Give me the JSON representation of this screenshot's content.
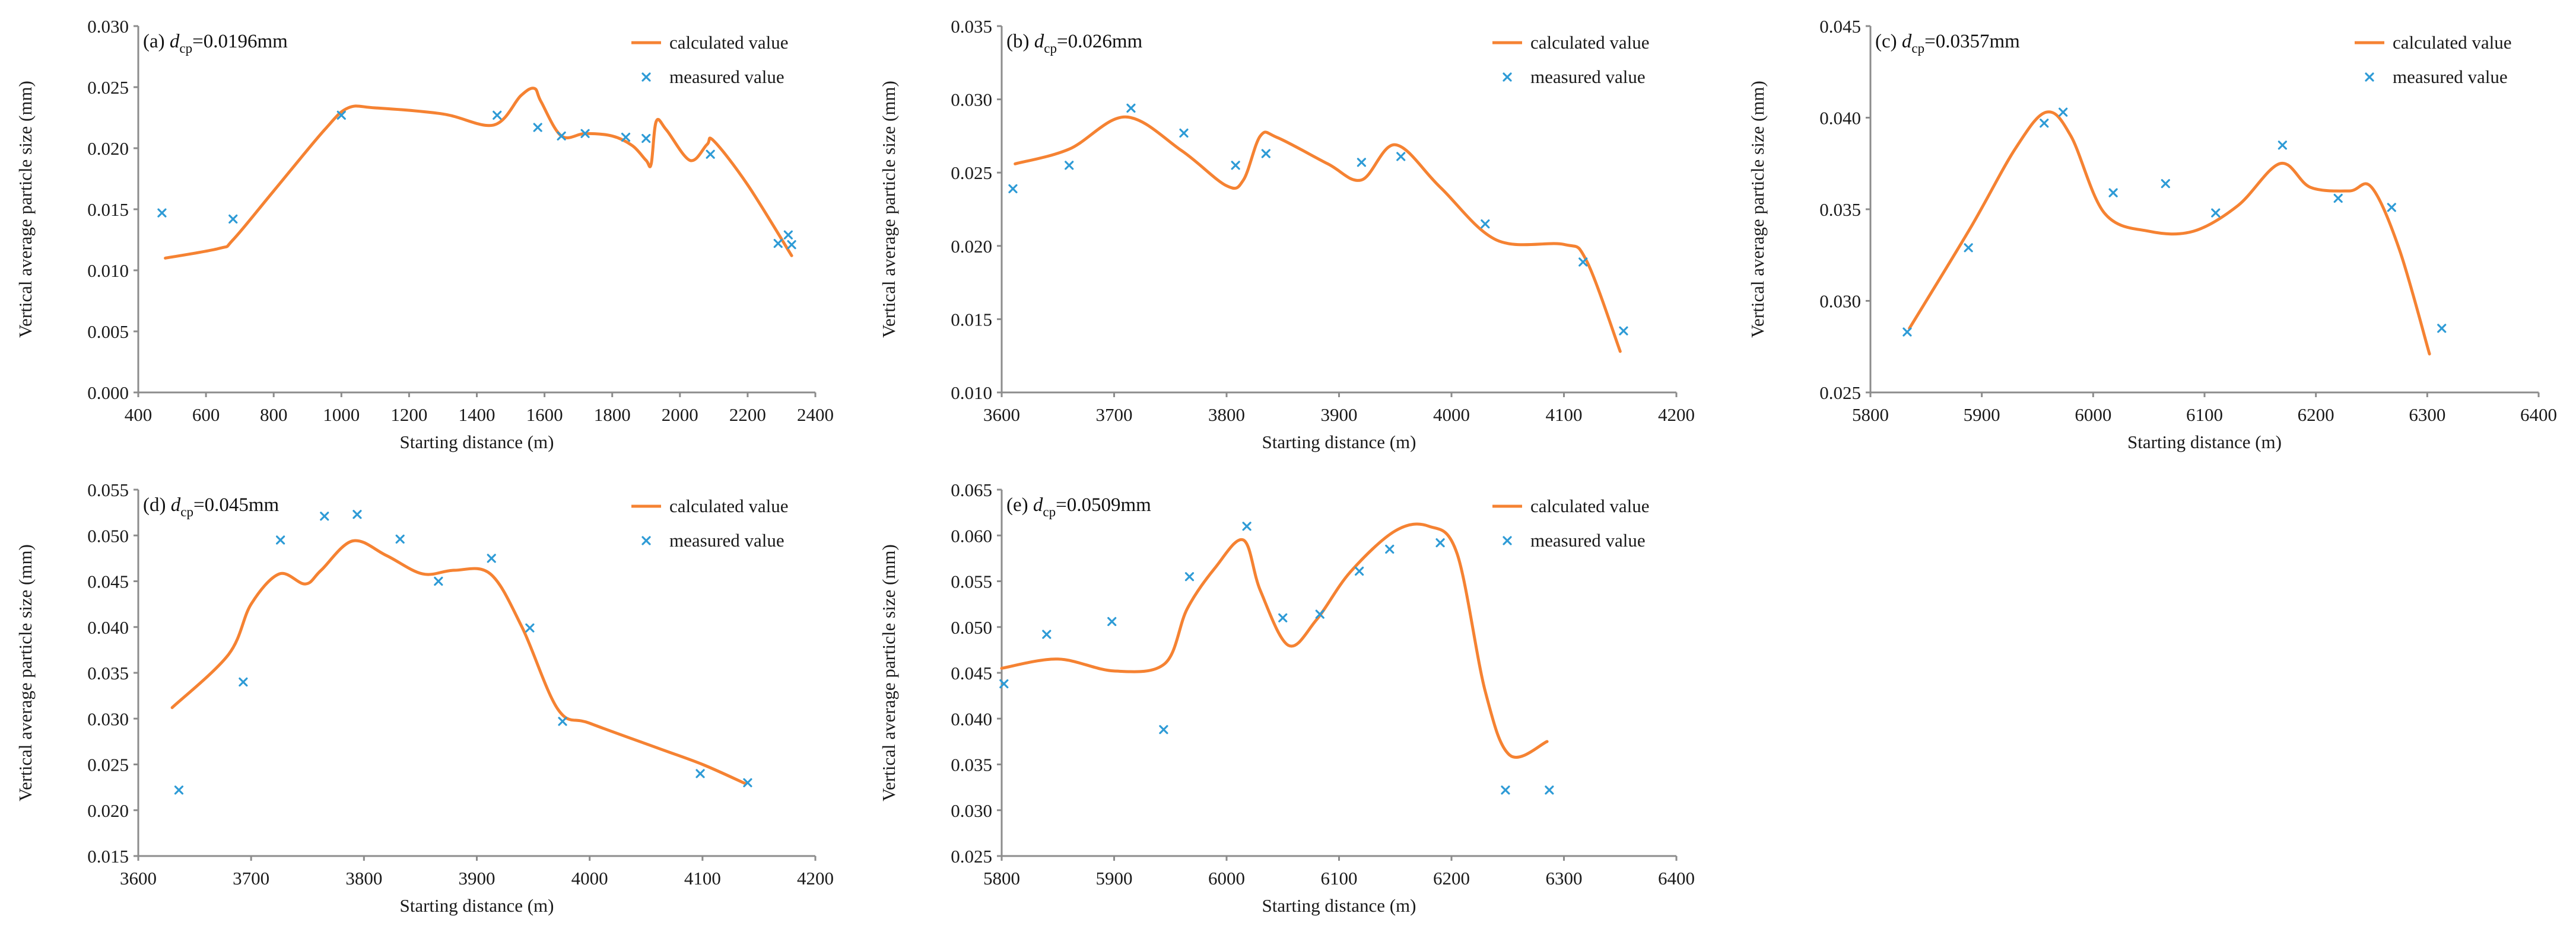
{
  "colors": {
    "calculated": "#f58232",
    "measured": "#2e9bd6",
    "axis": "#8c8c8c",
    "text": "#1a1a1a"
  },
  "chart_data": [
    {
      "id": "a",
      "type": "line",
      "title_prefix": "(a) ",
      "title_symbol": "d",
      "title_sub": "cp",
      "title_value": "=0.0196mm",
      "xlabel": "Starting distance (m)",
      "ylabel": "Vertical average particle size (mm)",
      "xlim": [
        400,
        2400
      ],
      "ylim": [
        0,
        0.03
      ],
      "xticks": [
        400,
        600,
        800,
        1000,
        1200,
        1400,
        1600,
        1800,
        2000,
        2200,
        2400
      ],
      "xtick_labels": [
        "400",
        "600",
        "800",
        "1000",
        "1200",
        "1400",
        "1600",
        "1800",
        "2000",
        "2200",
        "2400"
      ],
      "yticks": [
        0,
        0.005,
        0.01,
        0.015,
        0.02,
        0.025,
        0.03
      ],
      "ytick_labels": [
        "0.000",
        "0.005",
        "0.010",
        "0.015",
        "0.020",
        "0.025",
        "0.030"
      ],
      "legend": [
        "calculated value",
        "measured value"
      ],
      "series": [
        {
          "name": "calculated value",
          "style": "line",
          "x": [
            480,
            640,
            680,
            800,
            950,
            1020,
            1100,
            1300,
            1450,
            1530,
            1570,
            1590,
            1650,
            1720,
            1800,
            1860,
            1900,
            1915,
            1930,
            1960,
            2030,
            2080,
            2100,
            2200,
            2330
          ],
          "y": [
            0.011,
            0.0118,
            0.0125,
            0.0165,
            0.0215,
            0.0233,
            0.0233,
            0.0228,
            0.0219,
            0.0243,
            0.0249,
            0.0238,
            0.021,
            0.0212,
            0.021,
            0.0202,
            0.019,
            0.0187,
            0.0222,
            0.0215,
            0.019,
            0.0203,
            0.0206,
            0.017,
            0.0112
          ]
        },
        {
          "name": "measured value",
          "style": "marker",
          "x": [
            470,
            680,
            1000,
            1460,
            1580,
            1650,
            1720,
            1840,
            1900,
            2090,
            2290,
            2320,
            2330
          ],
          "y": [
            0.0147,
            0.0142,
            0.0227,
            0.0227,
            0.0217,
            0.021,
            0.0212,
            0.0209,
            0.0208,
            0.0195,
            0.0122,
            0.0129,
            0.0121
          ]
        }
      ]
    },
    {
      "id": "b",
      "type": "line",
      "title_prefix": "(b) ",
      "title_symbol": "d",
      "title_sub": "cp",
      "title_value": "=0.026mm",
      "xlabel": "Starting distance (m)",
      "ylabel": "Vertical average particle size (mm)",
      "xlim": [
        3600,
        4200
      ],
      "ylim": [
        0.01,
        0.035
      ],
      "xticks": [
        3600,
        3700,
        3800,
        3900,
        4000,
        4100,
        4200
      ],
      "xtick_labels": [
        "3600",
        "3700",
        "3800",
        "3900",
        "4000",
        "4100",
        "4200"
      ],
      "yticks": [
        0.01,
        0.015,
        0.02,
        0.025,
        0.03,
        0.035
      ],
      "ytick_labels": [
        "0.010",
        "0.015",
        "0.020",
        "0.025",
        "0.030",
        "0.035"
      ],
      "legend": [
        "calculated value",
        "measured value"
      ],
      "series": [
        {
          "name": "calculated value",
          "style": "line",
          "x": [
            3612,
            3660,
            3710,
            3760,
            3800,
            3815,
            3830,
            3845,
            3890,
            3920,
            3950,
            3990,
            4040,
            4100,
            4120,
            4150
          ],
          "y": [
            0.0256,
            0.0266,
            0.0288,
            0.0265,
            0.0241,
            0.0245,
            0.0275,
            0.0274,
            0.0256,
            0.0245,
            0.0269,
            0.024,
            0.0204,
            0.0201,
            0.019,
            0.0128
          ]
        },
        {
          "name": "measured value",
          "style": "marker",
          "x": [
            3610,
            3660,
            3715,
            3762,
            3808,
            3835,
            3920,
            3955,
            4030,
            4117,
            4153
          ],
          "y": [
            0.0239,
            0.0255,
            0.0294,
            0.0277,
            0.0255,
            0.0263,
            0.0257,
            0.0261,
            0.0215,
            0.0189,
            0.0142
          ]
        }
      ]
    },
    {
      "id": "c",
      "type": "line",
      "title_prefix": "(c) ",
      "title_symbol": "d",
      "title_sub": "cp",
      "title_value": "=0.0357mm",
      "xlabel": "Starting distance (m)",
      "ylabel": "Vertical average particle size (mm)",
      "xlim": [
        5800,
        6400
      ],
      "ylim": [
        0.025,
        0.045
      ],
      "xticks": [
        5800,
        5900,
        6000,
        6100,
        6200,
        6300,
        6400
      ],
      "xtick_labels": [
        "5800",
        "5900",
        "6000",
        "6100",
        "6200",
        "6300",
        "6400"
      ],
      "yticks": [
        0.025,
        0.03,
        0.035,
        0.04,
        0.045
      ],
      "ytick_labels": [
        "0.025",
        "0.030",
        "0.035",
        "0.040",
        "0.045"
      ],
      "legend": [
        "calculated value",
        "measured value"
      ],
      "series": [
        {
          "name": "calculated value",
          "style": "line",
          "x": [
            5835,
            5890,
            5930,
            5958,
            5980,
            6010,
            6050,
            6090,
            6130,
            6168,
            6195,
            6230,
            6250,
            6275,
            6302
          ],
          "y": [
            0.0285,
            0.034,
            0.0383,
            0.0403,
            0.039,
            0.0348,
            0.0338,
            0.0338,
            0.0352,
            0.0375,
            0.0362,
            0.036,
            0.0362,
            0.0328,
            0.0271
          ]
        },
        {
          "name": "measured value",
          "style": "marker",
          "x": [
            5833,
            5888,
            5956,
            5973,
            6018,
            6065,
            6110,
            6170,
            6220,
            6268,
            6313
          ],
          "y": [
            0.0283,
            0.0329,
            0.0397,
            0.0403,
            0.0359,
            0.0364,
            0.0348,
            0.0385,
            0.0356,
            0.0351,
            0.0285
          ]
        }
      ]
    },
    {
      "id": "d",
      "type": "line",
      "title_prefix": "(d) ",
      "title_symbol": "d",
      "title_sub": "cp",
      "title_value": "=0.045mm",
      "xlabel": "Starting distance (m)",
      "ylabel": "Vertical average particle size (mm)",
      "xlim": [
        3600,
        4200
      ],
      "ylim": [
        0.015,
        0.055
      ],
      "xticks": [
        3600,
        3700,
        3800,
        3900,
        4000,
        4100,
        4200
      ],
      "xtick_labels": [
        "3600",
        "3700",
        "3800",
        "3900",
        "4000",
        "4100",
        "4200"
      ],
      "yticks": [
        0.015,
        0.02,
        0.025,
        0.03,
        0.035,
        0.04,
        0.045,
        0.05,
        0.055
      ],
      "ytick_labels": [
        "0.015",
        "0.020",
        "0.025",
        "0.030",
        "0.035",
        "0.040",
        "0.045",
        "0.050",
        "0.055"
      ],
      "legend": [
        "calculated value",
        "measured value"
      ],
      "series": [
        {
          "name": "calculated value",
          "style": "line",
          "x": [
            3630,
            3680,
            3700,
            3725,
            3748,
            3762,
            3790,
            3820,
            3852,
            3880,
            3912,
            3940,
            3972,
            4000,
            4060,
            4100,
            4138
          ],
          "y": [
            0.0312,
            0.037,
            0.0425,
            0.0458,
            0.0447,
            0.0462,
            0.0494,
            0.0478,
            0.0458,
            0.0462,
            0.0458,
            0.04,
            0.031,
            0.0295,
            0.0268,
            0.025,
            0.0229
          ]
        },
        {
          "name": "measured value",
          "style": "marker",
          "x": [
            3636,
            3693,
            3726,
            3765,
            3794,
            3832,
            3866,
            3913,
            3947,
            3976,
            4098,
            4140
          ],
          "y": [
            0.0222,
            0.034,
            0.0495,
            0.0521,
            0.0523,
            0.0496,
            0.045,
            0.0475,
            0.0399,
            0.0297,
            0.024,
            0.023
          ]
        }
      ]
    },
    {
      "id": "e",
      "type": "line",
      "title_prefix": "(e) ",
      "title_symbol": "d",
      "title_sub": "cp",
      "title_value": "=0.0509mm",
      "xlabel": "Starting distance (m)",
      "ylabel": "Vertical average particle size (mm)",
      "xlim": [
        5800,
        6400
      ],
      "ylim": [
        0.025,
        0.065
      ],
      "xticks": [
        5800,
        5900,
        6000,
        6100,
        6200,
        6300,
        6400
      ],
      "xtick_labels": [
        "5800",
        "5900",
        "6000",
        "6100",
        "6200",
        "6300",
        "6400"
      ],
      "yticks": [
        0.025,
        0.03,
        0.035,
        0.04,
        0.045,
        0.05,
        0.055,
        0.06,
        0.065
      ],
      "ytick_labels": [
        "0.025",
        "0.030",
        "0.035",
        "0.040",
        "0.045",
        "0.050",
        "0.055",
        "0.060",
        "0.065"
      ],
      "legend": [
        "calculated value",
        "measured value"
      ],
      "series": [
        {
          "name": "calculated value",
          "style": "line",
          "x": [
            5800,
            5850,
            5900,
            5945,
            5965,
            5990,
            6015,
            6030,
            6055,
            6080,
            6110,
            6150,
            6180,
            6205,
            6230,
            6252,
            6285
          ],
          "y": [
            0.0455,
            0.0465,
            0.0452,
            0.046,
            0.052,
            0.0565,
            0.0595,
            0.054,
            0.048,
            0.0508,
            0.056,
            0.0605,
            0.061,
            0.058,
            0.043,
            0.036,
            0.0375
          ]
        },
        {
          "name": "measured value",
          "style": "marker",
          "x": [
            5802,
            5840,
            5898,
            5944,
            5967,
            6018,
            6050,
            6083,
            6118,
            6145,
            6190,
            6248,
            6287
          ],
          "y": [
            0.0438,
            0.0492,
            0.0506,
            0.0388,
            0.0555,
            0.061,
            0.051,
            0.0514,
            0.0561,
            0.0585,
            0.0592,
            0.0322,
            0.0322
          ]
        }
      ]
    }
  ]
}
